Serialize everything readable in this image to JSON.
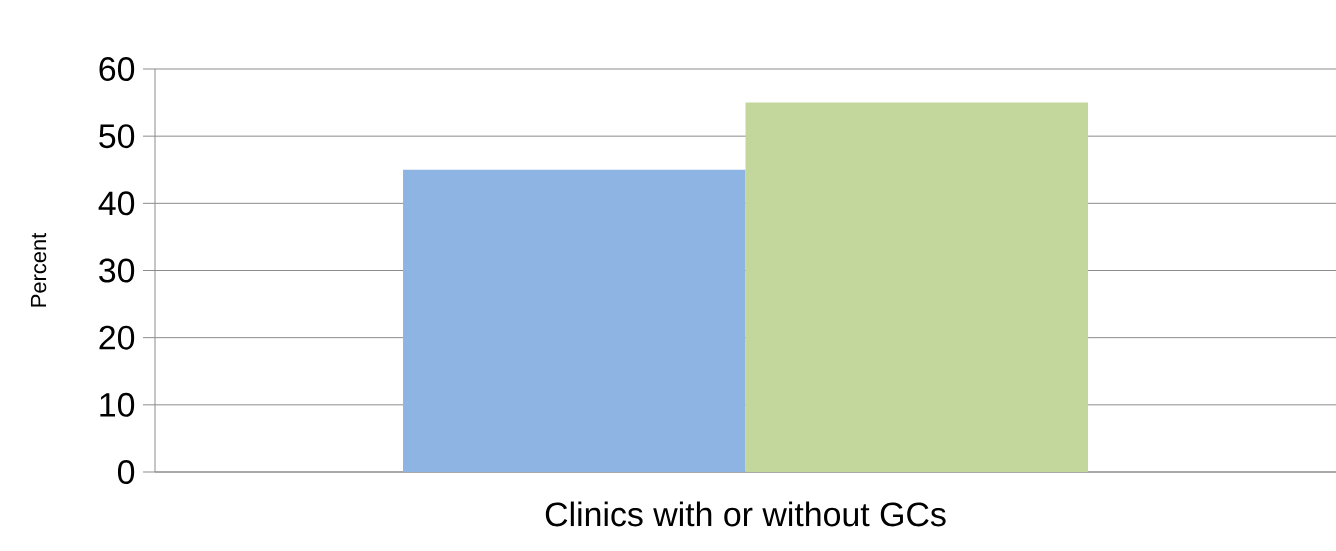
{
  "chart_data": {
    "type": "bar",
    "categories": [
      "Clinics with or without GCs"
    ],
    "ylabel": "Percent",
    "series": [
      {
        "color": "#8eb4e3",
        "values": [
          45
        ]
      },
      {
        "color": "#c3d69b",
        "values": [
          55
        ]
      }
    ],
    "ylim": [
      0,
      60
    ],
    "yticks": [
      0,
      10,
      20,
      30,
      40,
      50,
      60
    ],
    "grid": "y"
  }
}
